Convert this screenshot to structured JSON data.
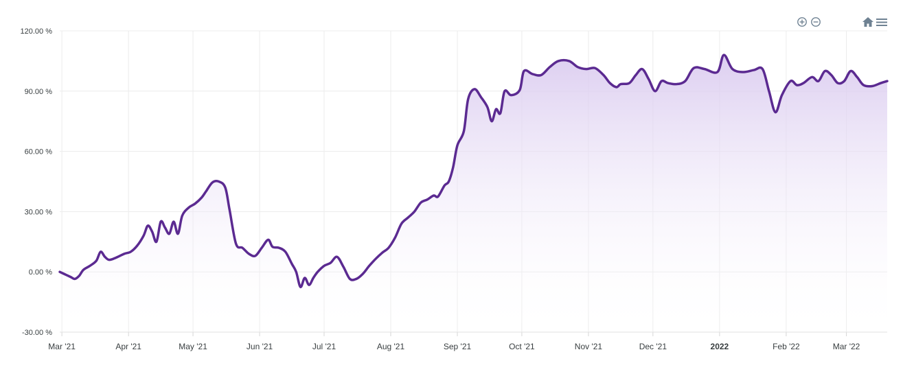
{
  "toolbar": {
    "zoom_in": "zoom-in-icon",
    "zoom_out": "zoom-out-icon",
    "reset": "home-icon",
    "menu": "menu-icon",
    "icon_color": "#6e8192"
  },
  "colors": {
    "line": "#5b2a91",
    "fill_top": "#d9c9ef",
    "fill_bottom": "#ffffff",
    "grid": "#ececec"
  },
  "chart_data": {
    "type": "area",
    "title": "",
    "xlabel": "",
    "ylabel": "",
    "ylim": [
      -30,
      120
    ],
    "y_ticks": [
      -30,
      0,
      30,
      60,
      90,
      120
    ],
    "y_tick_labels": [
      "-30.00 %",
      "0.00 %",
      "30.00 %",
      "60.00 %",
      "90.00 %",
      "120.00 %"
    ],
    "x_start": "2021-02-28",
    "x_end": "2022-03-20",
    "x_ticks": [
      {
        "date": "2021-03-01",
        "label": "Mar '21",
        "bold": false
      },
      {
        "date": "2021-04-01",
        "label": "Apr '21",
        "bold": false
      },
      {
        "date": "2021-05-01",
        "label": "May '21",
        "bold": false
      },
      {
        "date": "2021-06-01",
        "label": "Jun '21",
        "bold": false
      },
      {
        "date": "2021-07-01",
        "label": "Jul '21",
        "bold": false
      },
      {
        "date": "2021-08-01",
        "label": "Aug '21",
        "bold": false
      },
      {
        "date": "2021-09-01",
        "label": "Sep '21",
        "bold": false
      },
      {
        "date": "2021-10-01",
        "label": "Oct '21",
        "bold": false
      },
      {
        "date": "2021-11-01",
        "label": "Nov '21",
        "bold": false
      },
      {
        "date": "2021-12-01",
        "label": "Dec '21",
        "bold": false
      },
      {
        "date": "2022-01-01",
        "label": "2022",
        "bold": true
      },
      {
        "date": "2022-02-01",
        "label": "Feb '22",
        "bold": false
      },
      {
        "date": "2022-03-01",
        "label": "Mar '22",
        "bold": false
      }
    ],
    "grid": true,
    "series": [
      {
        "color": "#5b2a91",
        "points": [
          [
            "2021-02-28",
            0.0
          ],
          [
            "2021-03-02",
            -1.0
          ],
          [
            "2021-03-05",
            -2.5
          ],
          [
            "2021-03-07",
            -3.5
          ],
          [
            "2021-03-09",
            -2.0
          ],
          [
            "2021-03-11",
            1.0
          ],
          [
            "2021-03-14",
            3.0
          ],
          [
            "2021-03-17",
            5.5
          ],
          [
            "2021-03-19",
            10.0
          ],
          [
            "2021-03-21",
            7.5
          ],
          [
            "2021-03-23",
            6.0
          ],
          [
            "2021-03-26",
            7.0
          ],
          [
            "2021-03-30",
            9.0
          ],
          [
            "2021-04-02",
            10.0
          ],
          [
            "2021-04-05",
            13.0
          ],
          [
            "2021-04-08",
            18.0
          ],
          [
            "2021-04-10",
            23.0
          ],
          [
            "2021-04-12",
            20.0
          ],
          [
            "2021-04-14",
            15.0
          ],
          [
            "2021-04-16",
            25.0
          ],
          [
            "2021-04-18",
            22.0
          ],
          [
            "2021-04-20",
            19.0
          ],
          [
            "2021-04-22",
            25.0
          ],
          [
            "2021-04-24",
            19.0
          ],
          [
            "2021-04-26",
            28.0
          ],
          [
            "2021-04-29",
            32.0
          ],
          [
            "2021-05-02",
            34.0
          ],
          [
            "2021-05-05",
            37.0
          ],
          [
            "2021-05-07",
            40.0
          ],
          [
            "2021-05-10",
            44.5
          ],
          [
            "2021-05-13",
            45.0
          ],
          [
            "2021-05-16",
            42.0
          ],
          [
            "2021-05-18",
            31.0
          ],
          [
            "2021-05-21",
            14.0
          ],
          [
            "2021-05-24",
            12.0
          ],
          [
            "2021-05-27",
            9.0
          ],
          [
            "2021-05-30",
            8.0
          ],
          [
            "2021-06-02",
            12.0
          ],
          [
            "2021-06-05",
            16.0
          ],
          [
            "2021-06-07",
            12.5
          ],
          [
            "2021-06-10",
            12.0
          ],
          [
            "2021-06-13",
            10.0
          ],
          [
            "2021-06-16",
            4.0
          ],
          [
            "2021-06-18",
            0.0
          ],
          [
            "2021-06-20",
            -7.5
          ],
          [
            "2021-06-22",
            -3.0
          ],
          [
            "2021-06-24",
            -6.5
          ],
          [
            "2021-06-26",
            -3.0
          ],
          [
            "2021-06-28",
            0.0
          ],
          [
            "2021-07-01",
            3.0
          ],
          [
            "2021-07-04",
            4.5
          ],
          [
            "2021-07-07",
            7.5
          ],
          [
            "2021-07-10",
            2.5
          ],
          [
            "2021-07-13",
            -3.5
          ],
          [
            "2021-07-16",
            -3.5
          ],
          [
            "2021-07-19",
            -1.0
          ],
          [
            "2021-07-22",
            3.0
          ],
          [
            "2021-07-25",
            6.5
          ],
          [
            "2021-07-28",
            9.5
          ],
          [
            "2021-07-31",
            12.0
          ],
          [
            "2021-08-03",
            17.0
          ],
          [
            "2021-08-06",
            24.0
          ],
          [
            "2021-08-09",
            27.0
          ],
          [
            "2021-08-12",
            30.0
          ],
          [
            "2021-08-15",
            34.5
          ],
          [
            "2021-08-18",
            36.0
          ],
          [
            "2021-08-21",
            38.0
          ],
          [
            "2021-08-23",
            37.5
          ],
          [
            "2021-08-26",
            43.0
          ],
          [
            "2021-08-28",
            45.0
          ],
          [
            "2021-08-30",
            52.0
          ],
          [
            "2021-09-01",
            63.0
          ],
          [
            "2021-09-04",
            70.0
          ],
          [
            "2021-09-06",
            86.0
          ],
          [
            "2021-09-09",
            91.0
          ],
          [
            "2021-09-12",
            87.0
          ],
          [
            "2021-09-15",
            82.0
          ],
          [
            "2021-09-17",
            75.0
          ],
          [
            "2021-09-19",
            81.0
          ],
          [
            "2021-09-21",
            79.0
          ],
          [
            "2021-09-23",
            90.0
          ],
          [
            "2021-09-26",
            88.0
          ],
          [
            "2021-09-30",
            90.5
          ],
          [
            "2021-10-02",
            100.0
          ],
          [
            "2021-10-06",
            98.5
          ],
          [
            "2021-10-10",
            98.0
          ],
          [
            "2021-10-14",
            102.0
          ],
          [
            "2021-10-18",
            105.0
          ],
          [
            "2021-10-23",
            105.0
          ],
          [
            "2021-10-27",
            102.0
          ],
          [
            "2021-10-31",
            101.0
          ],
          [
            "2021-11-04",
            101.5
          ],
          [
            "2021-11-08",
            98.0
          ],
          [
            "2021-11-11",
            94.0
          ],
          [
            "2021-11-14",
            92.0
          ],
          [
            "2021-11-16",
            93.5
          ],
          [
            "2021-11-20",
            94.0
          ],
          [
            "2021-11-23",
            98.0
          ],
          [
            "2021-11-26",
            101.0
          ],
          [
            "2021-11-29",
            96.0
          ],
          [
            "2021-12-02",
            90.0
          ],
          [
            "2021-12-05",
            95.0
          ],
          [
            "2021-12-08",
            94.0
          ],
          [
            "2021-12-12",
            93.5
          ],
          [
            "2021-12-16",
            95.0
          ],
          [
            "2021-12-20",
            101.5
          ],
          [
            "2021-12-25",
            101.0
          ],
          [
            "2021-12-31",
            99.5
          ],
          [
            "2022-01-03",
            108.0
          ],
          [
            "2022-01-07",
            101.0
          ],
          [
            "2022-01-12",
            99.5
          ],
          [
            "2022-01-17",
            100.5
          ],
          [
            "2022-01-21",
            101.0
          ],
          [
            "2022-01-24",
            90.0
          ],
          [
            "2022-01-27",
            79.5
          ],
          [
            "2022-01-30",
            88.0
          ],
          [
            "2022-02-03",
            95.0
          ],
          [
            "2022-02-06",
            93.0
          ],
          [
            "2022-02-09",
            94.0
          ],
          [
            "2022-02-13",
            97.0
          ],
          [
            "2022-02-16",
            95.0
          ],
          [
            "2022-02-19",
            100.0
          ],
          [
            "2022-02-22",
            98.0
          ],
          [
            "2022-02-25",
            94.0
          ],
          [
            "2022-02-28",
            95.0
          ],
          [
            "2022-03-03",
            100.0
          ],
          [
            "2022-03-06",
            97.0
          ],
          [
            "2022-03-09",
            93.0
          ],
          [
            "2022-03-13",
            92.5
          ],
          [
            "2022-03-17",
            94.0
          ],
          [
            "2022-03-20",
            95.0
          ]
        ]
      }
    ]
  }
}
